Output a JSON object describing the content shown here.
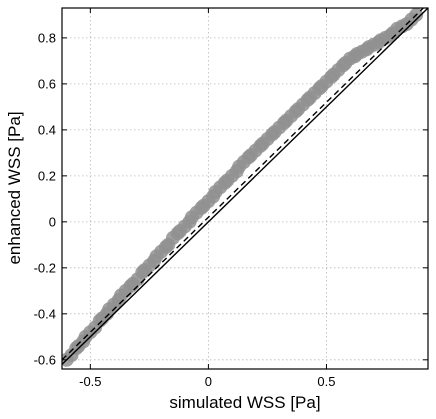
{
  "chart_data": {
    "type": "scatter",
    "title": "",
    "xlabel": "simulated WSS [Pa]",
    "ylabel": "enhanced WSS [Pa]",
    "xlim": [
      -0.62,
      0.93
    ],
    "ylim": [
      -0.64,
      0.93
    ],
    "xticks": [
      -0.5,
      0,
      0.5
    ],
    "xtick_labels": [
      "-0.5",
      "0",
      "0.5"
    ],
    "yticks": [
      -0.6,
      -0.4,
      -0.2,
      0,
      0.2,
      0.4,
      0.6,
      0.8
    ],
    "ytick_labels": [
      "-0.6",
      "-0.4",
      "-0.2",
      "0",
      "0.2",
      "0.4",
      "0.6",
      "0.8"
    ],
    "grid": true,
    "point_color": "#909090",
    "series": [
      {
        "kind": "points",
        "color": "#909090",
        "x": [
          -0.6,
          -0.58,
          -0.56,
          -0.55,
          -0.53,
          -0.52,
          -0.5,
          -0.48,
          -0.46,
          -0.45,
          -0.43,
          -0.42,
          -0.4,
          -0.38,
          -0.37,
          -0.35,
          -0.33,
          -0.32,
          -0.3,
          -0.28,
          -0.27,
          -0.25,
          -0.23,
          -0.22,
          -0.2,
          -0.18,
          -0.17,
          -0.15,
          -0.13,
          -0.12,
          -0.1,
          -0.08,
          -0.07,
          -0.05,
          -0.03,
          -0.02,
          0,
          0.02,
          0.03,
          0.05,
          0.07,
          0.08,
          0.1,
          0.12,
          0.13,
          0.15,
          0.17,
          0.18,
          0.2,
          0.22,
          0.23,
          0.25,
          0.27,
          0.28,
          0.3,
          0.32,
          0.33,
          0.35,
          0.37,
          0.38,
          0.4,
          0.42,
          0.43,
          0.45,
          0.47,
          0.48,
          0.5,
          0.52,
          0.53,
          0.55,
          0.57,
          0.58,
          0.6,
          0.62,
          0.63,
          0.65,
          0.67,
          0.68,
          0.7,
          0.72,
          0.73,
          0.75,
          0.77,
          0.78,
          0.8,
          0.82,
          0.84,
          0.86,
          0.88
        ],
        "y": [
          -0.6,
          -0.58,
          -0.55,
          -0.54,
          -0.52,
          -0.5,
          -0.48,
          -0.46,
          -0.43,
          -0.42,
          -0.4,
          -0.38,
          -0.36,
          -0.34,
          -0.32,
          -0.3,
          -0.28,
          -0.27,
          -0.25,
          -0.22,
          -0.21,
          -0.19,
          -0.17,
          -0.15,
          -0.13,
          -0.11,
          -0.1,
          -0.07,
          -0.05,
          -0.04,
          -0.02,
          0.0,
          0.02,
          0.04,
          0.06,
          0.07,
          0.09,
          0.11,
          0.13,
          0.15,
          0.17,
          0.18,
          0.2,
          0.22,
          0.24,
          0.26,
          0.28,
          0.29,
          0.31,
          0.33,
          0.34,
          0.36,
          0.38,
          0.39,
          0.41,
          0.43,
          0.44,
          0.46,
          0.48,
          0.49,
          0.51,
          0.53,
          0.54,
          0.56,
          0.58,
          0.59,
          0.61,
          0.63,
          0.64,
          0.66,
          0.68,
          0.69,
          0.71,
          0.72,
          0.73,
          0.74,
          0.75,
          0.76,
          0.77,
          0.78,
          0.79,
          0.8,
          0.81,
          0.82,
          0.84,
          0.85,
          0.86,
          0.88,
          0.9
        ]
      },
      {
        "kind": "line",
        "style": "solid",
        "color": "#000000",
        "x": [
          -0.62,
          0.93
        ],
        "y": [
          -0.62,
          0.93
        ]
      },
      {
        "kind": "line",
        "style": "dashed",
        "color": "#000000",
        "x": [
          -0.62,
          0.93
        ],
        "y": [
          -0.6,
          0.95
        ]
      }
    ]
  }
}
